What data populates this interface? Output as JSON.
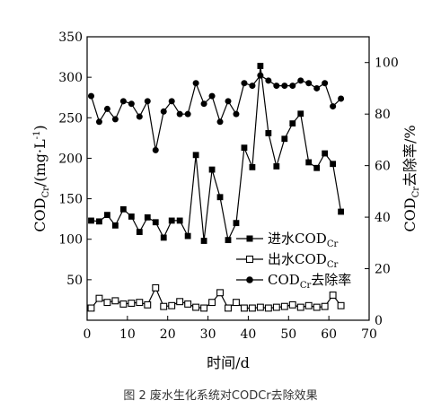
{
  "caption": "图 2 废水生化系统对CODCr去除效果",
  "chart_data": {
    "type": "line",
    "x_axis": {
      "label": "时间/d",
      "lim": [
        0,
        70
      ],
      "ticks": [
        0,
        10,
        20,
        30,
        40,
        50,
        60,
        70
      ],
      "tick_labels": [
        "0",
        "10",
        "20",
        "30",
        "40",
        "50",
        "60",
        "70"
      ]
    },
    "y_left": {
      "label_main": "COD",
      "label_sub": "Cr",
      "label_rest": "/(mg·L",
      "label_sup": "-1",
      "label_end": ")",
      "lim": [
        0,
        350
      ],
      "ticks": [
        50,
        100,
        150,
        200,
        250,
        300,
        350
      ],
      "tick_labels": [
        "50",
        "100",
        "150",
        "200",
        "250",
        "300",
        "350"
      ]
    },
    "y_right": {
      "label_main": "COD",
      "label_sub": "Cr",
      "label_rest": "去除率/%",
      "lim": [
        0,
        110
      ],
      "ticks": [
        0,
        20,
        40,
        60,
        80,
        100
      ],
      "tick_labels": [
        "0",
        "20",
        "40",
        "60",
        "80",
        "100"
      ]
    },
    "legend_position": "center-right",
    "series": [
      {
        "name_main": "进水COD",
        "name_sub": "Cr",
        "axis": "left",
        "marker": "filled-square",
        "x": [
          1,
          3,
          5,
          7,
          9,
          11,
          13,
          15,
          17,
          19,
          21,
          23,
          25,
          27,
          29,
          31,
          33,
          35,
          37,
          39,
          41,
          43,
          45,
          47,
          49,
          51,
          53,
          55,
          57,
          59,
          61,
          63
        ],
        "y": [
          123,
          122,
          130,
          117,
          137,
          128,
          109,
          127,
          121,
          102,
          123,
          123,
          104,
          204,
          98,
          186,
          152,
          99,
          120,
          213,
          189,
          314,
          231,
          190,
          224,
          243,
          255,
          195,
          188,
          206,
          193,
          134
        ]
      },
      {
        "name_main": "出水COD",
        "name_sub": "Cr",
        "axis": "left",
        "marker": "open-square",
        "x": [
          1,
          3,
          5,
          7,
          9,
          11,
          13,
          15,
          17,
          19,
          21,
          23,
          25,
          27,
          29,
          31,
          33,
          35,
          37,
          39,
          41,
          43,
          45,
          47,
          49,
          51,
          53,
          55,
          57,
          59,
          61,
          63
        ],
        "y": [
          15,
          27,
          22,
          24,
          20,
          21,
          22,
          19,
          40,
          17,
          18,
          23,
          20,
          16,
          15,
          22,
          34,
          15,
          22,
          15,
          15,
          16,
          15,
          16,
          17,
          19,
          16,
          18,
          16,
          17,
          31,
          18
        ]
      },
      {
        "name_main": "COD",
        "name_sub": "Cr",
        "name_rest": "去除率",
        "axis": "right",
        "marker": "filled-circle",
        "x": [
          1,
          3,
          5,
          7,
          9,
          11,
          13,
          15,
          17,
          19,
          21,
          23,
          25,
          27,
          29,
          31,
          33,
          35,
          37,
          39,
          41,
          43,
          45,
          47,
          49,
          51,
          53,
          55,
          57,
          59,
          61,
          63
        ],
        "y": [
          87,
          77,
          82,
          78,
          85,
          84,
          79,
          85,
          66,
          81,
          85,
          80,
          80,
          92,
          84,
          87,
          77,
          85,
          80,
          92,
          91,
          95,
          93,
          91,
          91,
          91,
          93,
          92,
          90,
          92,
          83,
          86
        ]
      }
    ]
  }
}
